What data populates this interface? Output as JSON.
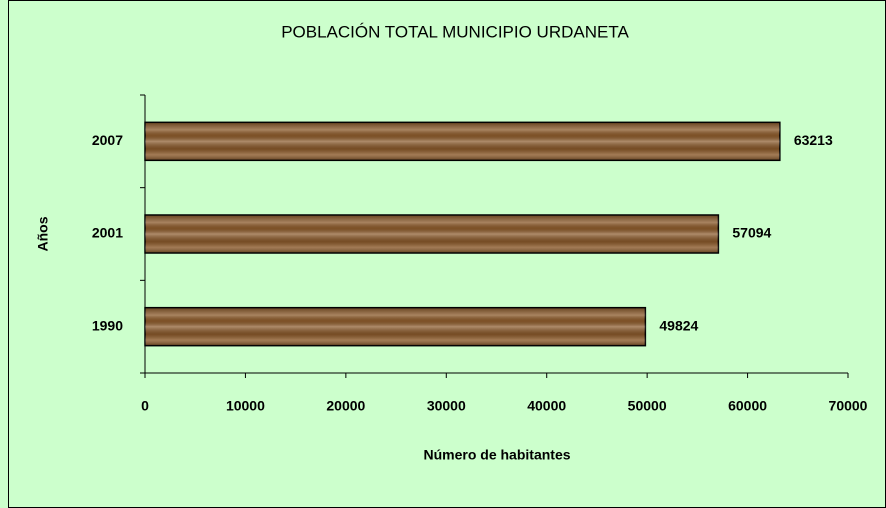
{
  "chart_data": {
    "type": "bar",
    "orientation": "horizontal",
    "title": "POBLACIÓN TOTAL MUNICIPIO  URDANETA",
    "x_label": "Número de habitantes",
    "y_label": "Años",
    "categories": [
      "1990",
      "2001",
      "2007"
    ],
    "values": [
      49824,
      57094,
      63213
    ],
    "color": "#8b5a2b",
    "xlim": [
      0,
      70000
    ],
    "xticks": [
      0,
      10000,
      20000,
      30000,
      40000,
      50000,
      60000,
      70000
    ],
    "grid": false
  }
}
